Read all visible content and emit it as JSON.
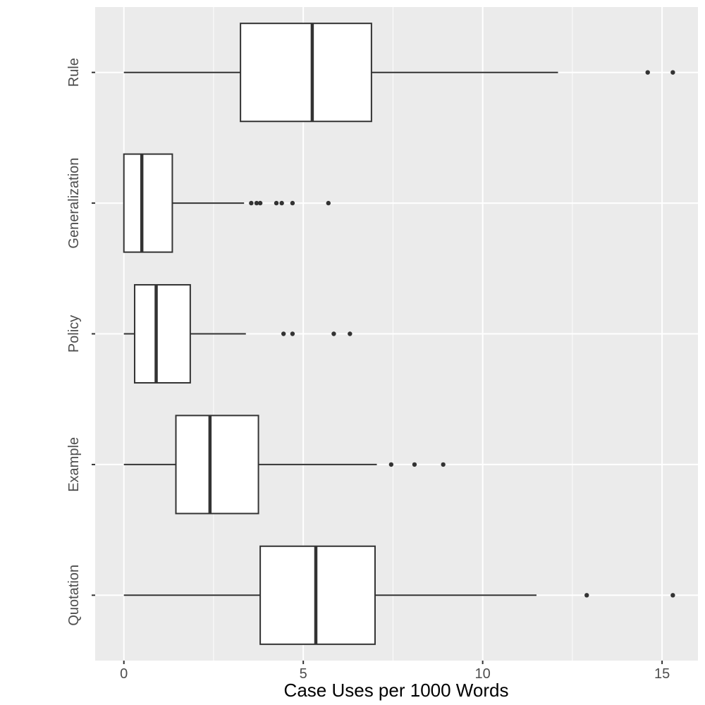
{
  "chart_data": {
    "type": "boxplot",
    "orientation": "horizontal",
    "xlabel": "Case Uses per 1000 Words",
    "ylabel": "",
    "xlim": [
      -0.8,
      16.0
    ],
    "xticks": [
      0,
      5,
      10,
      15
    ],
    "grid": true,
    "legend": "none",
    "categories": [
      "Quotation",
      "Example",
      "Policy",
      "Generalization",
      "Rule"
    ],
    "boxes": [
      {
        "category": "Quotation",
        "whisker_low": 0.0,
        "q1": 3.8,
        "median": 5.35,
        "q3": 7.0,
        "whisker_high": 11.5,
        "outliers": [
          12.9,
          15.3
        ]
      },
      {
        "category": "Example",
        "whisker_low": 0.0,
        "q1": 1.45,
        "median": 2.4,
        "q3": 3.75,
        "whisker_high": 7.05,
        "outliers": [
          7.45,
          8.1,
          8.9
        ]
      },
      {
        "category": "Policy",
        "whisker_low": 0.0,
        "q1": 0.3,
        "median": 0.9,
        "q3": 1.85,
        "whisker_high": 3.4,
        "outliers": [
          4.45,
          4.7,
          5.85,
          6.3
        ]
      },
      {
        "category": "Generalization",
        "whisker_low": 0.0,
        "q1": 0.0,
        "median": 0.5,
        "q3": 1.35,
        "whisker_high": 3.35,
        "outliers": [
          3.55,
          3.7,
          3.8,
          4.25,
          4.4,
          4.7,
          5.7
        ]
      },
      {
        "category": "Rule",
        "whisker_low": 0.0,
        "q1": 3.25,
        "median": 5.25,
        "q3": 6.9,
        "whisker_high": 12.1,
        "outliers": [
          14.6,
          15.3
        ]
      }
    ],
    "colors": {
      "panel": "#ebebeb",
      "grid_major": "#ffffff",
      "box_fill": "#ffffff",
      "box_stroke": "#333333",
      "tick_text": "#4d4d4d",
      "tick_mark": "#333333"
    }
  }
}
